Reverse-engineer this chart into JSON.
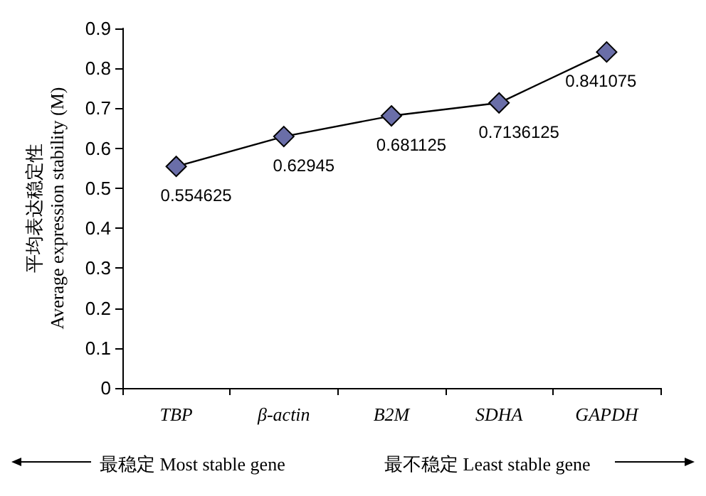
{
  "chart_data": {
    "type": "line",
    "ylabel": "平均表达稳定性\nAverage expression stability (M)",
    "categories": [
      "TBP",
      "β-actin",
      "B2M",
      "SDHA",
      "GAPDH"
    ],
    "series": [
      {
        "color": "#6a6ea8",
        "values": [
          0.554625,
          0.62945,
          0.681125,
          0.7136125,
          0.841075
        ]
      }
    ],
    "ylim": [
      0,
      0.9
    ],
    "yticks": [
      0,
      0.1,
      0.2,
      0.3,
      0.4,
      0.5,
      0.6,
      0.7,
      0.8,
      0.9
    ],
    "data_labels": true,
    "marker": "diamond",
    "line_style": "solid",
    "grid": false,
    "annotations": [
      "最稳定 Most stable gene",
      "最不稳定 Least stable gene"
    ]
  }
}
